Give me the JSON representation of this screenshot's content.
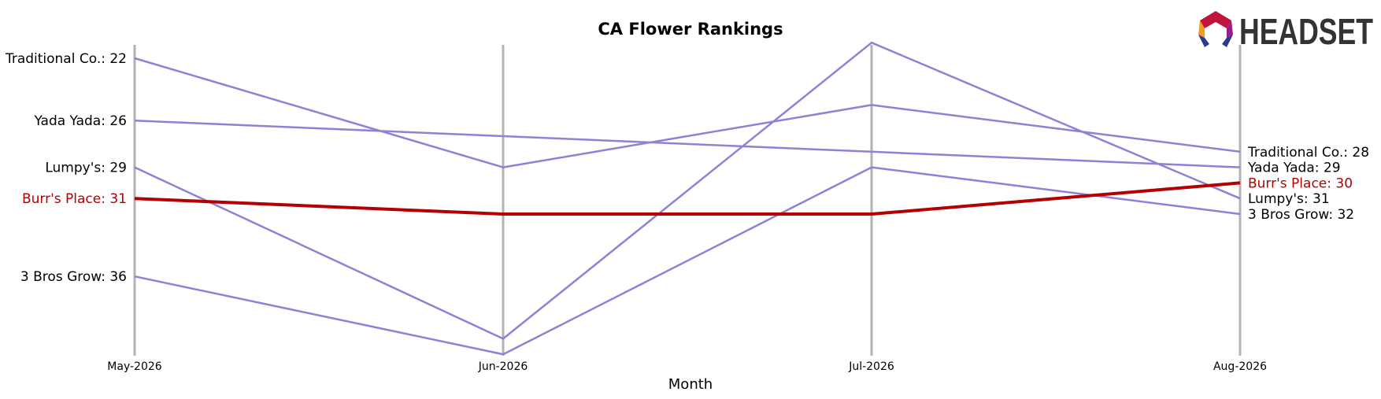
{
  "logo": {
    "text": "HEADSET"
  },
  "chart_data": {
    "type": "line",
    "title": "CA Flower Rankings",
    "xlabel": "Month",
    "ylabel": "",
    "categories": [
      "May-2026",
      "Jun-2026",
      "Jul-2026",
      "Aug-2026"
    ],
    "ylim": [
      42,
      22
    ],
    "y_inverted": true,
    "grid": "vertical lines at each month",
    "highlight_color": "#b30000",
    "series_color": "#8f80d8",
    "series": [
      {
        "name": "Traditional Co.",
        "values": [
          22,
          29,
          25,
          28
        ],
        "highlight": false,
        "start_label": "Traditional Co.: 22",
        "end_label": "Traditional Co.: 28"
      },
      {
        "name": "Yada Yada",
        "values": [
          26,
          27,
          28,
          29
        ],
        "highlight": false,
        "start_label": "Yada Yada: 26",
        "end_label": "Yada Yada: 29"
      },
      {
        "name": "Lumpy's",
        "values": [
          29,
          40,
          21,
          31
        ],
        "highlight": false,
        "start_label": "Lumpy's: 29",
        "end_label": "Lumpy's: 31"
      },
      {
        "name": "3 Bros Grow",
        "values": [
          36,
          41,
          29,
          32
        ],
        "highlight": false,
        "start_label": "3 Bros Grow: 36",
        "end_label": "3 Bros Grow: 32"
      },
      {
        "name": "Burr's Place",
        "values": [
          31,
          32,
          32,
          30
        ],
        "highlight": true,
        "start_label": "Burr's Place: 31",
        "end_label": "Burr's Place: 30"
      }
    ]
  }
}
